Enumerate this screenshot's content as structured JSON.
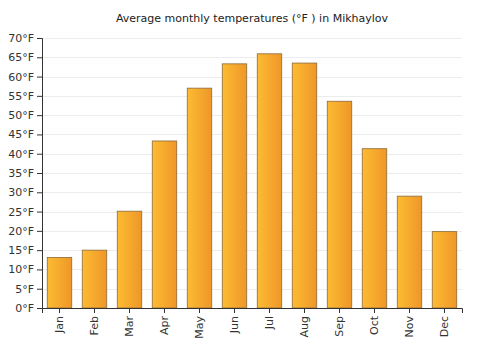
{
  "chart_data": {
    "type": "bar",
    "title": "Average monthly temperatures (°F ) in Mikhaylov",
    "categories": [
      "Jan",
      "Feb",
      "Mar",
      "Apr",
      "May",
      "Jun",
      "Jul",
      "Aug",
      "Sep",
      "Oct",
      "Nov",
      "Dec"
    ],
    "values": [
      13.1,
      15,
      25.1,
      43.3,
      57,
      63.3,
      65.9,
      63.5,
      53.6,
      41.3,
      29,
      19.8
    ],
    "color": "#fb9f2a",
    "ylim": [
      0,
      70
    ],
    "yticks": [
      {
        "value": 0,
        "label": "0°F"
      },
      {
        "value": 5,
        "label": "5°F"
      },
      {
        "value": 10,
        "label": "10°F"
      },
      {
        "value": 15,
        "label": "15°F"
      },
      {
        "value": 20,
        "label": "20°F"
      },
      {
        "value": 25,
        "label": "25°F"
      },
      {
        "value": 30,
        "label": "30°F"
      },
      {
        "value": 35,
        "label": "35°F"
      },
      {
        "value": 40,
        "label": "40°F"
      },
      {
        "value": 45,
        "label": "45°F"
      },
      {
        "value": 50,
        "label": "50°F"
      },
      {
        "value": 55,
        "label": "55°F"
      },
      {
        "value": 60,
        "label": "60°F"
      },
      {
        "value": 65,
        "label": "65°F"
      },
      {
        "value": 70,
        "label": "70°F"
      }
    ],
    "grid": true
  }
}
